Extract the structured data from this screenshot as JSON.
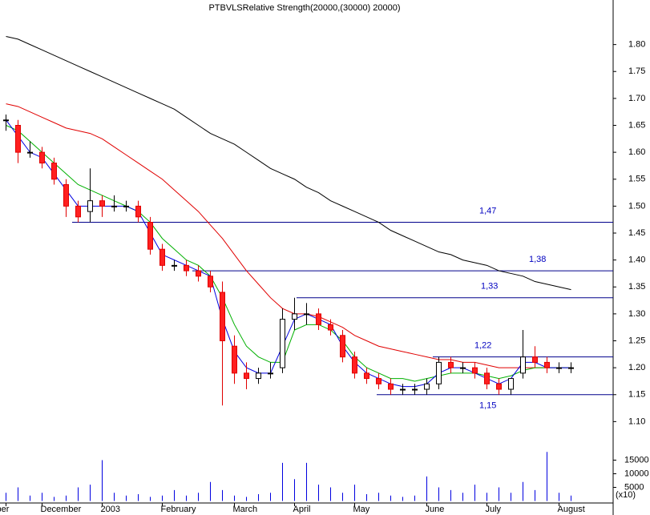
{
  "chart_data": {
    "type": "candlestick",
    "title": "PTBVLSRelative Strength(20000,(30000) 20000)",
    "categories": [
      "ber",
      null,
      null,
      "December",
      null,
      null,
      null,
      null,
      "2003",
      null,
      null,
      null,
      null,
      "February",
      null,
      null,
      null,
      null,
      null,
      "March",
      null,
      null,
      null,
      null,
      "April",
      null,
      null,
      null,
      null,
      "May",
      null,
      null,
      null,
      null,
      null,
      "June",
      null,
      null,
      null,
      null,
      "July",
      null,
      null,
      null,
      null,
      null,
      "August",
      null
    ],
    "open": [
      1.66,
      1.65,
      1.6,
      1.6,
      1.58,
      1.54,
      1.5,
      1.49,
      1.51,
      1.5,
      1.5,
      1.5,
      1.47,
      1.42,
      1.39,
      1.39,
      1.38,
      1.37,
      1.34,
      1.24,
      1.19,
      1.18,
      1.19,
      1.2,
      1.29,
      1.3,
      1.3,
      1.28,
      1.26,
      1.22,
      1.19,
      1.18,
      1.17,
      1.16,
      1.16,
      1.16,
      1.17,
      1.21,
      1.2,
      1.2,
      1.19,
      1.17,
      1.16,
      1.19,
      1.22,
      1.21,
      1.2,
      1.2
    ],
    "high": [
      1.67,
      1.66,
      1.62,
      1.61,
      1.59,
      1.55,
      1.51,
      1.57,
      1.52,
      1.52,
      1.51,
      1.51,
      1.48,
      1.43,
      1.4,
      1.4,
      1.39,
      1.38,
      1.36,
      1.26,
      1.21,
      1.2,
      1.21,
      1.31,
      1.33,
      1.32,
      1.31,
      1.29,
      1.27,
      1.23,
      1.2,
      1.19,
      1.18,
      1.17,
      1.17,
      1.18,
      1.22,
      1.22,
      1.21,
      1.21,
      1.2,
      1.18,
      1.18,
      1.27,
      1.24,
      1.22,
      1.21,
      1.21
    ],
    "low": [
      1.64,
      1.58,
      1.59,
      1.57,
      1.54,
      1.48,
      1.47,
      1.47,
      1.48,
      1.49,
      1.49,
      1.47,
      1.41,
      1.38,
      1.38,
      1.37,
      1.36,
      1.34,
      1.13,
      1.17,
      1.16,
      1.17,
      1.18,
      1.19,
      1.27,
      1.28,
      1.27,
      1.26,
      1.21,
      1.18,
      1.17,
      1.16,
      1.15,
      1.15,
      1.15,
      1.15,
      1.16,
      1.19,
      1.19,
      1.18,
      1.16,
      1.15,
      1.15,
      1.18,
      1.2,
      1.19,
      1.19,
      1.19
    ],
    "close": [
      1.66,
      1.6,
      1.6,
      1.58,
      1.55,
      1.5,
      1.48,
      1.51,
      1.5,
      1.5,
      1.5,
      1.48,
      1.42,
      1.39,
      1.39,
      1.38,
      1.37,
      1.35,
      1.25,
      1.19,
      1.18,
      1.19,
      1.19,
      1.29,
      1.3,
      1.3,
      1.28,
      1.27,
      1.22,
      1.19,
      1.18,
      1.17,
      1.16,
      1.16,
      1.16,
      1.17,
      1.21,
      1.2,
      1.2,
      1.19,
      1.17,
      1.16,
      1.18,
      1.22,
      1.21,
      1.2,
      1.2,
      1.2
    ],
    "series": [
      {
        "color": "#000000",
        "values": [
          1.815,
          1.81,
          1.8,
          1.79,
          1.78,
          1.77,
          1.76,
          1.75,
          1.74,
          1.73,
          1.72,
          1.71,
          1.7,
          1.69,
          1.68,
          1.665,
          1.65,
          1.635,
          1.625,
          1.615,
          1.6,
          1.585,
          1.57,
          1.56,
          1.55,
          1.535,
          1.525,
          1.51,
          1.5,
          1.49,
          1.48,
          1.47,
          1.455,
          1.445,
          1.435,
          1.425,
          1.415,
          1.41,
          1.4,
          1.395,
          1.39,
          1.38,
          1.375,
          1.37,
          1.36,
          1.355,
          1.35,
          1.345
        ]
      },
      {
        "color": "#e00000",
        "values": [
          1.69,
          1.685,
          1.675,
          1.665,
          1.655,
          1.645,
          1.64,
          1.635,
          1.625,
          1.61,
          1.595,
          1.58,
          1.565,
          1.55,
          1.53,
          1.51,
          1.49,
          1.465,
          1.44,
          1.41,
          1.38,
          1.355,
          1.33,
          1.31,
          1.3,
          1.3,
          1.295,
          1.285,
          1.275,
          1.26,
          1.25,
          1.24,
          1.235,
          1.23,
          1.225,
          1.22,
          1.215,
          1.215,
          1.21,
          1.21,
          1.205,
          1.2,
          1.2,
          1.2,
          1.2,
          1.2,
          1.2,
          1.2
        ]
      },
      {
        "color": "#00b000",
        "values": [
          1.65,
          1.64,
          1.62,
          1.6,
          1.58,
          1.56,
          1.54,
          1.53,
          1.52,
          1.51,
          1.5,
          1.49,
          1.47,
          1.44,
          1.42,
          1.4,
          1.39,
          1.37,
          1.33,
          1.28,
          1.24,
          1.22,
          1.21,
          1.21,
          1.27,
          1.28,
          1.28,
          1.27,
          1.25,
          1.22,
          1.2,
          1.19,
          1.18,
          1.18,
          1.175,
          1.18,
          1.185,
          1.19,
          1.19,
          1.19,
          1.185,
          1.18,
          1.185,
          1.195,
          1.2,
          1.2,
          1.2,
          1.2
        ]
      },
      {
        "color": "#0000e0",
        "values": [
          1.66,
          1.63,
          1.6,
          1.59,
          1.56,
          1.53,
          1.5,
          1.5,
          1.5,
          1.5,
          1.5,
          1.49,
          1.45,
          1.41,
          1.4,
          1.39,
          1.38,
          1.37,
          1.29,
          1.23,
          1.2,
          1.19,
          1.19,
          1.24,
          1.29,
          1.3,
          1.29,
          1.28,
          1.24,
          1.21,
          1.19,
          1.18,
          1.17,
          1.165,
          1.165,
          1.17,
          1.19,
          1.2,
          1.2,
          1.19,
          1.18,
          1.17,
          1.18,
          1.21,
          1.21,
          1.2,
          1.2,
          1.2
        ]
      }
    ],
    "levels": [
      {
        "value": 1.47,
        "label": "1,47"
      },
      {
        "value": 1.38,
        "label": "1,38"
      },
      {
        "value": 1.33,
        "label": "1,33"
      },
      {
        "value": 1.22,
        "label": "1,22"
      },
      {
        "value": 1.15,
        "label": "1,15"
      }
    ],
    "ylim": [
      1.05,
      1.85
    ],
    "yticks": [
      {
        "value": 1.1,
        "label": "1.10"
      },
      1.15,
      {
        "value": 1.2,
        "label": "1.20"
      },
      1.25,
      {
        "value": 1.3,
        "label": "1.30"
      },
      1.35,
      {
        "value": 1.4,
        "label": "1.40"
      },
      1.45,
      {
        "value": 1.5,
        "label": "1.50"
      },
      1.55,
      {
        "value": 1.6,
        "label": "1.60"
      },
      1.65,
      {
        "value": 1.7,
        "label": "1.70"
      },
      1.75,
      {
        "value": 1.8,
        "label": "1.80"
      }
    ],
    "volume": {
      "values": [
        3000,
        5000,
        2000,
        3000,
        1500,
        2000,
        5000,
        6000,
        15000,
        3000,
        2000,
        2500,
        1500,
        2000,
        4000,
        2000,
        3000,
        7000,
        4000,
        2000,
        1500,
        2500,
        3000,
        14000,
        8000,
        14000,
        6000,
        5000,
        3000,
        6000,
        2500,
        3000,
        2000,
        1500,
        2000,
        9000,
        5000,
        4000,
        3000,
        6000,
        3000,
        5000,
        3000,
        7000,
        4000,
        18000,
        3000,
        2000
      ],
      "color": "#0000e0",
      "ylim": [
        0,
        18500
      ],
      "yticks": [
        5000,
        10000,
        15000
      ],
      "unit": "(x10)"
    }
  }
}
